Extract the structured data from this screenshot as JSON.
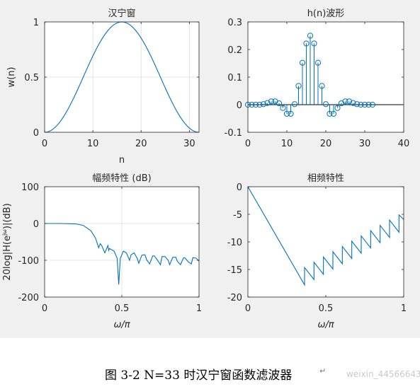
{
  "colors": {
    "line": "#0072BD",
    "axes": "#262626",
    "grid": "#dcdcdc",
    "figure_bg": "#f0f0f0"
  },
  "chart_data": [
    {
      "id": "window",
      "type": "line",
      "title": "汉宁窗",
      "xlabel": "n",
      "ylabel": "w(n)",
      "xlim": [
        0,
        32
      ],
      "ylim": [
        0,
        1
      ],
      "xticks": [
        "0",
        "10",
        "20",
        "30"
      ],
      "yticks": [
        "0",
        "0.5",
        "1"
      ],
      "grid": true,
      "x": [
        0,
        1,
        2,
        3,
        4,
        5,
        6,
        7,
        8,
        9,
        10,
        11,
        12,
        13,
        14,
        15,
        16,
        17,
        18,
        19,
        20,
        21,
        22,
        23,
        24,
        25,
        26,
        27,
        28,
        29,
        30,
        31,
        32
      ],
      "values": [
        0,
        0.0096,
        0.0381,
        0.0843,
        0.1464,
        0.2222,
        0.3087,
        0.4025,
        0.5,
        0.5975,
        0.6913,
        0.7778,
        0.8536,
        0.9157,
        0.9619,
        0.9904,
        1,
        0.9904,
        0.9619,
        0.9157,
        0.8536,
        0.7778,
        0.6913,
        0.5975,
        0.5,
        0.4025,
        0.3087,
        0.2222,
        0.1464,
        0.0843,
        0.0381,
        0.0096,
        0
      ]
    },
    {
      "id": "impulse",
      "type": "scatter",
      "title": "h(n)波形",
      "xlabel": "",
      "ylabel": "",
      "xlim": [
        0,
        40
      ],
      "ylim": [
        -0.1,
        0.3
      ],
      "xticks": [
        "0",
        "10",
        "20",
        "30",
        "40"
      ],
      "yticks": [
        "-0.1",
        "0",
        "0.1",
        "0.2",
        "0.3"
      ],
      "grid": false,
      "x": [
        0,
        1,
        2,
        3,
        4,
        5,
        6,
        7,
        8,
        9,
        10,
        11,
        12,
        13,
        14,
        15,
        16,
        17,
        18,
        19,
        20,
        21,
        22,
        23,
        24,
        25,
        26,
        27,
        28,
        29,
        30,
        31,
        32
      ],
      "values": [
        0,
        0,
        0,
        0,
        0.002,
        0.006,
        0.012,
        0.012,
        0.005,
        -0.012,
        -0.033,
        -0.033,
        0.002,
        0.068,
        0.152,
        0.222,
        0.25,
        0.222,
        0.152,
        0.068,
        0.002,
        -0.033,
        -0.033,
        -0.012,
        0.005,
        0.012,
        0.012,
        0.006,
        0.002,
        0,
        0,
        0,
        0
      ]
    },
    {
      "id": "magnitude",
      "type": "line",
      "title": "幅频特性 (dB)",
      "xlabel": "ω/π",
      "ylabel": "20log|H(e^jω)|(dB)",
      "xlim": [
        0,
        1
      ],
      "ylim": [
        -200,
        100
      ],
      "xticks": [
        "0",
        "0.5",
        "1"
      ],
      "yticks": [
        "-200",
        "-100",
        "0",
        "100"
      ],
      "grid": true,
      "x": [
        0,
        0.1,
        0.2,
        0.25,
        0.3,
        0.33,
        0.35,
        0.36,
        0.37,
        0.39,
        0.41,
        0.415,
        0.42,
        0.45,
        0.47,
        0.48,
        0.49,
        0.51,
        0.53,
        0.55,
        0.56,
        0.58,
        0.6,
        0.61,
        0.63,
        0.65,
        0.66,
        0.68,
        0.7,
        0.71,
        0.73,
        0.75,
        0.76,
        0.78,
        0.8,
        0.81,
        0.83,
        0.85,
        0.86,
        0.88,
        0.9,
        0.91,
        0.93,
        0.95,
        0.96,
        0.98,
        1.0
      ],
      "values": [
        0,
        0,
        -1,
        -5,
        -20,
        -40,
        -66,
        -55,
        -60,
        -80,
        -60,
        -73,
        -68,
        -75,
        -95,
        -166,
        -95,
        -75,
        -80,
        -100,
        -85,
        -80,
        -95,
        -108,
        -86,
        -85,
        -98,
        -110,
        -88,
        -88,
        -99,
        -112,
        -90,
        -90,
        -100,
        -112,
        -92,
        -92,
        -103,
        -112,
        -93,
        -94,
        -104,
        -110,
        -93,
        -94,
        -102
      ]
    },
    {
      "id": "phase",
      "type": "line",
      "title": "相频特性",
      "xlabel": "ω/π",
      "ylabel": "",
      "xlim": [
        0,
        1
      ],
      "ylim": [
        -20,
        0
      ],
      "xticks": [
        "0",
        "0.5",
        "1"
      ],
      "yticks": [
        "-20",
        "-15",
        "-10",
        "-5",
        "0"
      ],
      "grid": false,
      "x": [
        0,
        0.3636,
        0.3636,
        0.4242,
        0.4242,
        0.4848,
        0.4848,
        0.5455,
        0.5455,
        0.6061,
        0.6061,
        0.6667,
        0.6667,
        0.7273,
        0.7273,
        0.7879,
        0.7879,
        0.8485,
        0.8485,
        0.9091,
        0.9091,
        0.9697,
        0.9697,
        1.0
      ],
      "values": [
        0,
        -17.79,
        -14.65,
        -16.83,
        -13.69,
        -15.88,
        -12.74,
        -14.92,
        -11.78,
        -13.97,
        -10.83,
        -13.01,
        -9.87,
        -12.06,
        -8.92,
        -11.1,
        -7.96,
        -10.15,
        -7.01,
        -9.19,
        -6.05,
        -8.24,
        -5.1,
        -5.95
      ],
      "note_values_raw": true
    }
  ],
  "caption": {
    "text": "图 3-2 N=33 时汉宁窗函数滤波器",
    "mark": "↵",
    "watermark": "weixin_44566643"
  }
}
